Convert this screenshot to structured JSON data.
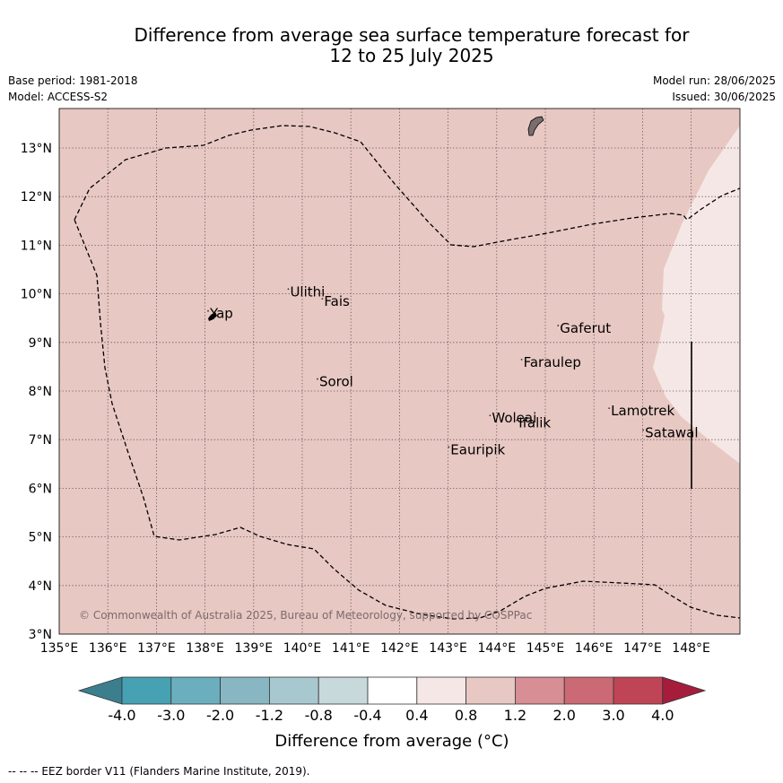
{
  "title_line1": "Difference from average sea surface temperature forecast for",
  "title_line2": "12 to 25 July 2025",
  "meta": {
    "base_period": "Base period: 1981-2018",
    "model": "Model: ACCESS-S2",
    "model_run": "Model run: 28/06/2025",
    "issued": "Issued: 30/06/2025"
  },
  "map": {
    "lon_labels": [
      "135°E",
      "136°E",
      "137°E",
      "138°E",
      "139°E",
      "140°E",
      "141°E",
      "142°E",
      "143°E",
      "144°E",
      "145°E",
      "146°E",
      "147°E",
      "148°E"
    ],
    "lat_labels": [
      "3°N",
      "4°N",
      "5°N",
      "6°N",
      "7°N",
      "8°N",
      "9°N",
      "10°N",
      "11°N",
      "12°N",
      "13°N"
    ],
    "extent": {
      "lon": [
        135,
        149
      ],
      "lat": [
        3,
        13.8
      ]
    },
    "places": [
      {
        "name": "Yap",
        "lon": 138.1,
        "lat": 9.5
      },
      {
        "name": "Ulithi",
        "lon": 139.75,
        "lat": 9.95
      },
      {
        "name": "Fais",
        "lon": 140.45,
        "lat": 9.75
      },
      {
        "name": "Sorol",
        "lon": 140.35,
        "lat": 8.1
      },
      {
        "name": "Gaferut",
        "lon": 145.3,
        "lat": 9.2
      },
      {
        "name": "Faraulep",
        "lon": 144.55,
        "lat": 8.5
      },
      {
        "name": "Woleai",
        "lon": 143.9,
        "lat": 7.35
      },
      {
        "name": "Ifalik",
        "lon": 144.45,
        "lat": 7.25
      },
      {
        "name": "Lamotrek",
        "lon": 146.35,
        "lat": 7.5
      },
      {
        "name": "Satawal",
        "lon": 147.05,
        "lat": 7.05
      },
      {
        "name": "Eauripik",
        "lon": 143.05,
        "lat": 6.7
      }
    ],
    "credit": "© Commonwealth of Australia 2025, Bureau of Meteorology, supported by COSPPac",
    "base_anomaly_class": "0.8 to 1.2",
    "east_anomaly_class": "0.4 to 0.8"
  },
  "colorbar": {
    "label": "Difference from average (°C)",
    "ticks": [
      "-4.0",
      "-3.0",
      "-2.0",
      "-1.2",
      "-0.8",
      "-0.4",
      "0.4",
      "0.8",
      "1.2",
      "2.0",
      "3.0",
      "4.0"
    ],
    "colors": [
      "#3b7f8f",
      "#46a1b3",
      "#6bafbe",
      "#88b7c3",
      "#a8c8cf",
      "#c8d9dc",
      "#ffffff",
      "#f5e7e5",
      "#e8c8c3",
      "#d78e94",
      "#cb6a74",
      "#bf4556",
      "#a51d3b"
    ]
  },
  "footnote": "--  --  -- EEZ border V11 (Flanders Marine Institute, 2019)."
}
